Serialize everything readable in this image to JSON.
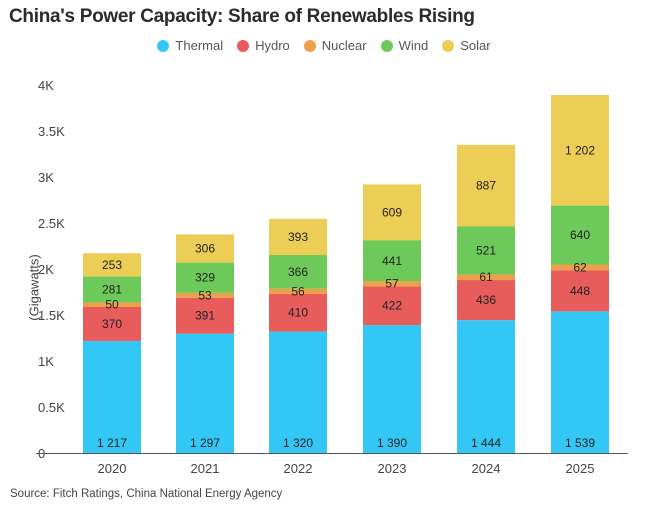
{
  "chart_data": {
    "type": "bar",
    "stacked": true,
    "title": "China's Power Capacity: Share of Renewables Rising",
    "xlabel": "",
    "ylabel": "(Gigawatts)",
    "categories": [
      "2020",
      "2021",
      "2022",
      "2023",
      "2024",
      "2025"
    ],
    "series": [
      {
        "name": "Thermal",
        "color": "#33c7f5",
        "values": [
          1217,
          1297,
          1320,
          1390,
          1444,
          1539
        ],
        "labels": [
          "1 217",
          "1 297",
          "1 320",
          "1 390",
          "1 444",
          "1 539"
        ],
        "label_position": "bottom"
      },
      {
        "name": "Hydro",
        "color": "#e85c5c",
        "values": [
          370,
          391,
          410,
          422,
          436,
          448
        ],
        "labels": [
          "370",
          "391",
          "410",
          "422",
          "436",
          "448"
        ]
      },
      {
        "name": "Nuclear",
        "color": "#eca04a",
        "values": [
          50,
          53,
          56,
          57,
          61,
          62
        ],
        "labels": [
          "50",
          "53",
          "56",
          "57",
          "61",
          "62"
        ]
      },
      {
        "name": "Wind",
        "color": "#6cc95a",
        "values": [
          281,
          329,
          366,
          441,
          521,
          640
        ],
        "labels": [
          "281",
          "329",
          "366",
          "441",
          "521",
          "640"
        ]
      },
      {
        "name": "Solar",
        "color": "#eccd55",
        "values": [
          253,
          306,
          393,
          609,
          887,
          1202
        ],
        "labels": [
          "253",
          "306",
          "393",
          "609",
          "887",
          "1 202"
        ]
      }
    ],
    "ylim": [
      0,
      4000
    ],
    "yticks": [
      0,
      500,
      1000,
      1500,
      2000,
      2500,
      3000,
      3500,
      4000
    ],
    "ytick_labels": [
      "0",
      "0.5K",
      "1K",
      "1.5K",
      "2K",
      "2.5K",
      "3K",
      "3.5K",
      "4K"
    ],
    "grid": false,
    "legend_position": "top-center",
    "source": "Source: Fitch Ratings, China National Energy Agency"
  }
}
